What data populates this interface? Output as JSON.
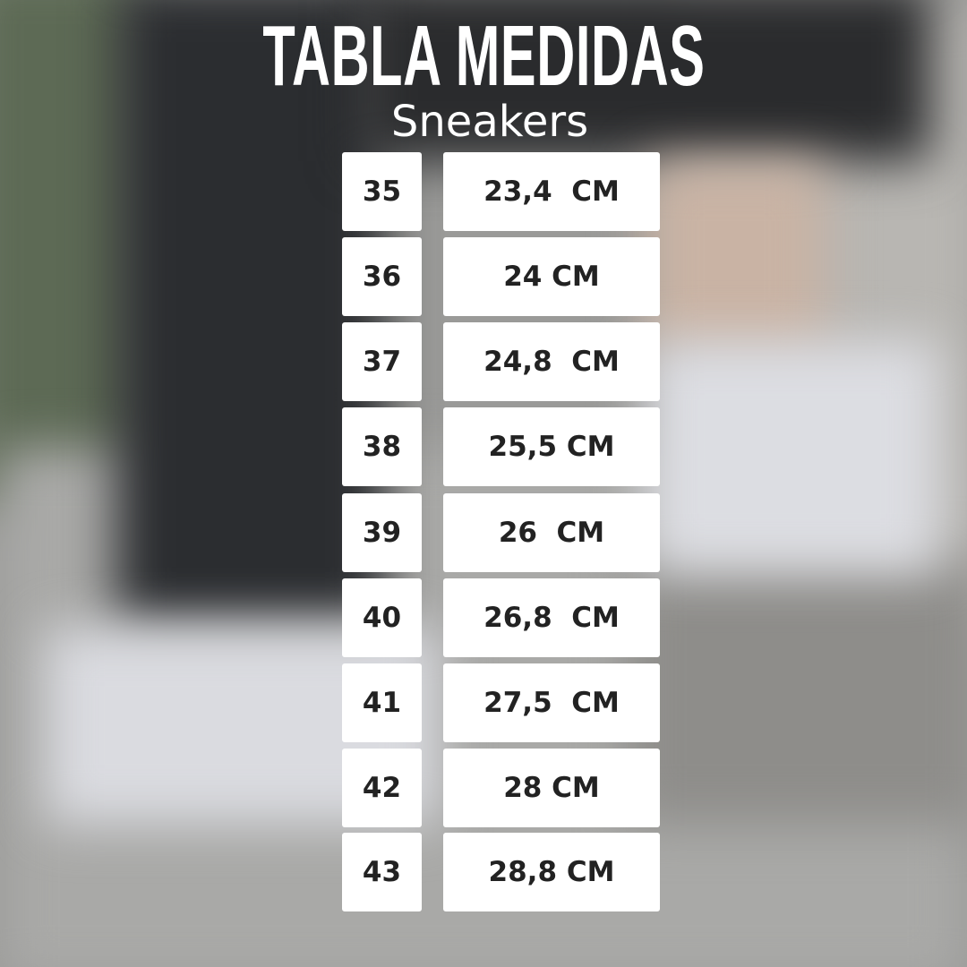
{
  "title": "TABLA MEDIDAS",
  "subtitle": "Sneakers",
  "table": [
    {
      "size": "35",
      "length": "23,4  CM"
    },
    {
      "size": "36",
      "length": "24 CM"
    },
    {
      "size": "37",
      "length": "24,8  CM"
    },
    {
      "size": "38",
      "length": "25,5 CM"
    },
    {
      "size": "39",
      "length": "26  CM"
    },
    {
      "size": "40",
      "length": "26,8  CM"
    },
    {
      "size": "41",
      "length": "27,5  CM"
    },
    {
      "size": "42",
      "length": "28 CM"
    },
    {
      "size": "43",
      "length": "28,8 CM"
    }
  ]
}
